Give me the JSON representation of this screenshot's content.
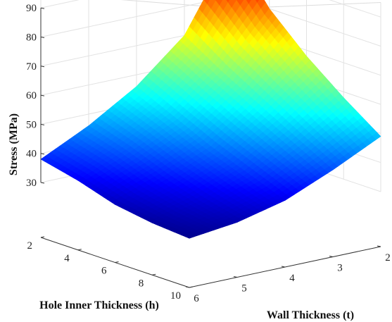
{
  "chart_data": {
    "type": "surface",
    "title": "",
    "xlabel": "Hole Inner Thickness (h)",
    "ylabel": "Wall Thickness (t)",
    "zlabel": "Stress (MPa)",
    "x_ticks": [
      "2",
      "4",
      "6",
      "8",
      "10"
    ],
    "y_ticks": [
      "2",
      "3",
      "4",
      "5",
      "6"
    ],
    "z_ticks": [
      "30",
      "40",
      "50",
      "60",
      "70",
      "80",
      "90"
    ],
    "xlim": [
      2,
      10
    ],
    "ylim": [
      2,
      6
    ],
    "zlim": [
      30,
      95
    ],
    "grid": true,
    "colormap": "jet",
    "colormap_stops": [
      "#00008f",
      "#0000ff",
      "#00ffff",
      "#ffff00",
      "#ff0000",
      "#800000"
    ],
    "x": [
      2,
      4,
      6,
      8,
      10
    ],
    "y": [
      2,
      3,
      4,
      5,
      6
    ],
    "z": [
      [
        97,
        70,
        56,
        46,
        38
      ],
      [
        80,
        62,
        50,
        42,
        35
      ],
      [
        68,
        55,
        44,
        37,
        31
      ],
      [
        58,
        48,
        39,
        33,
        29
      ],
      [
        49,
        41,
        34,
        30,
        28
      ]
    ]
  }
}
